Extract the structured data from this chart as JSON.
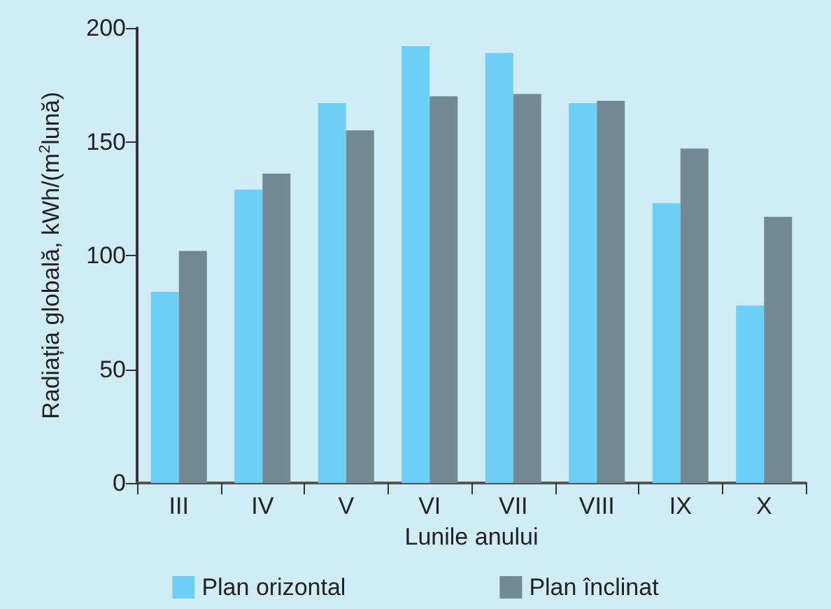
{
  "chart_data": {
    "type": "bar",
    "xlabel": "Lunile anului",
    "ylabel": "Radiația globală, kWh/(m$^{2}$lună)",
    "categories": [
      "III",
      "IV",
      "V",
      "VI",
      "VII",
      "VIII",
      "IX",
      "X"
    ],
    "series": [
      {
        "name": "Plan orizontal",
        "color": "#6dcff6",
        "values": [
          84,
          129,
          167,
          192,
          189,
          167,
          123,
          78
        ]
      },
      {
        "name": "Plan înclinat",
        "color": "#748a93",
        "values": [
          102,
          136,
          155,
          170,
          171,
          168,
          147,
          117
        ]
      }
    ],
    "ylim": [
      0,
      200
    ],
    "yticks": [
      0,
      50,
      100,
      150,
      200
    ],
    "grid": false,
    "legend": "bottom"
  }
}
